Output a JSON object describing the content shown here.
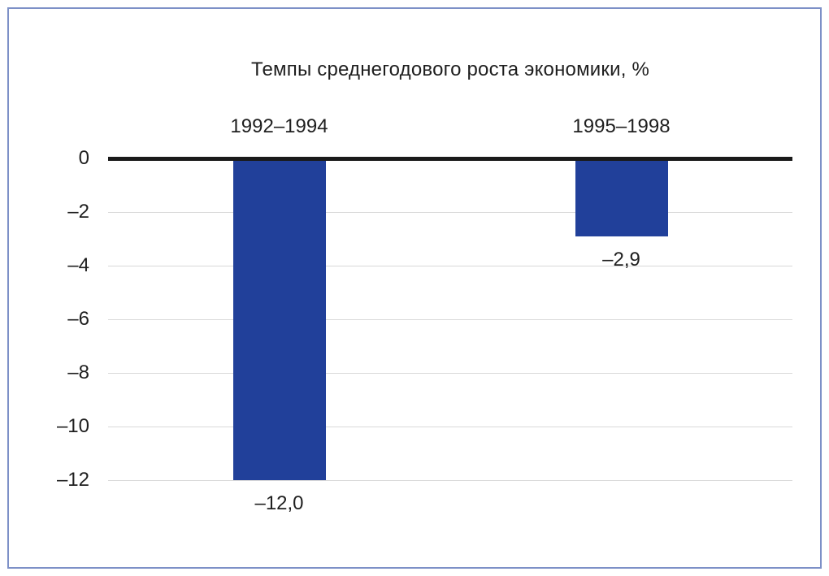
{
  "frame": {
    "border_color": "#7d90c7"
  },
  "chart_data": {
    "type": "bar",
    "title": "Темпы среднегодового роста экономики, %",
    "categories": [
      "1992–1994",
      "1995–1998"
    ],
    "values": [
      -12.0,
      -2.9
    ],
    "value_labels": [
      "–12,0",
      "–2,9"
    ],
    "series": [
      {
        "name": "Темпы среднегодового роста экономики, %",
        "values": [
          -12.0,
          -2.9
        ]
      }
    ],
    "xlabel": "",
    "ylabel": "",
    "y_ticks": [
      0,
      -2,
      -4,
      -6,
      -8,
      -10,
      -12
    ],
    "y_tick_labels": [
      "0",
      "–2",
      "–4",
      "–6",
      "–8",
      "–10",
      "–12"
    ],
    "ylim": [
      0,
      -12
    ],
    "grid": true,
    "legend": "none",
    "bar_color": "#21409a",
    "gridline_color": "#d9d9d9",
    "zero_line_color": "#1a1a1a",
    "text_color": "#1f1f1f",
    "orientation": "vertical",
    "baseline": "top-zero-line"
  }
}
